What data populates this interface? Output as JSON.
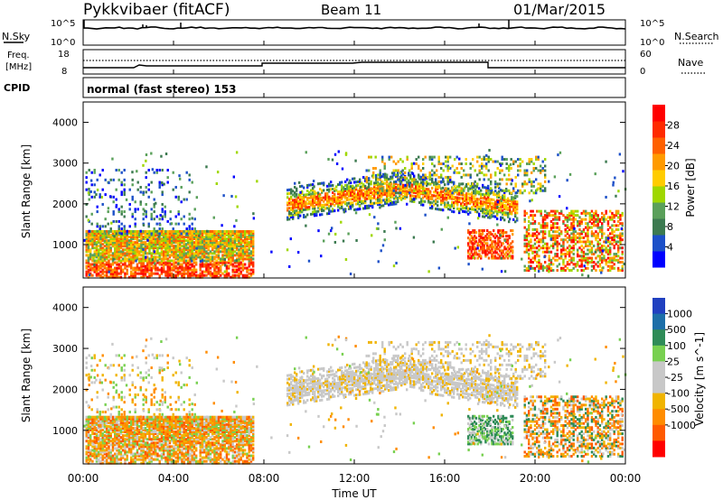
{
  "header": {
    "station": "Pykkvibaer (fitACF)",
    "beam": "Beam 11",
    "date": "01/Mar/2015"
  },
  "noise_panel": {
    "left_label": "N.Sky",
    "right_label": "N.Search",
    "left_ticks": [
      "10^5",
      "10^0"
    ],
    "right_ticks": [
      "10^5",
      "10^0"
    ]
  },
  "freq_panel": {
    "left_label_line1": "Freq.",
    "left_label_line2": "[MHz]",
    "right_label": "Nave",
    "left_ticks": [
      "18",
      "8"
    ],
    "right_ticks": [
      "60",
      "0"
    ]
  },
  "cpid_panel": {
    "label": "CPID",
    "text": "normal (fast stereo) 153"
  },
  "x_axis": {
    "ticks": [
      "00:00",
      "04:00",
      "08:00",
      "12:00",
      "16:00",
      "20:00",
      "00:00"
    ],
    "label": "Time UT"
  },
  "colors": {
    "power_scale": [
      "#0000ff",
      "#1c50c8",
      "#3c7a50",
      "#5aa05a",
      "#9fd700",
      "#ffcc00",
      "#ff9a00",
      "#ff6000",
      "#ff2a00",
      "#ff0000"
    ],
    "velocity_scale": [
      "#ff0000",
      "#ff5a00",
      "#ff8c00",
      "#f0b400",
      "#c8c8c8",
      "#c8c8c8",
      "#78d050",
      "#2e8b57",
      "#1c6ea8",
      "#2040c0"
    ]
  },
  "chart_data": [
    {
      "type": "heatmap",
      "title": "Power",
      "xlabel": "",
      "ylabel": "Slant Range [km]",
      "ylim": [
        180,
        4500
      ],
      "y_ticks": [
        "1000",
        "2000",
        "3000",
        "4000"
      ],
      "colorbar_label": "Power [dB]",
      "colorbar_ticks": [
        "4",
        "8",
        "12",
        "16",
        "20",
        "24",
        "28"
      ],
      "colorbar_range": [
        0,
        32
      ]
    },
    {
      "type": "heatmap",
      "title": "Velocity",
      "xlabel": "Time UT",
      "ylabel": "Slant Range [km]",
      "ylim": [
        180,
        4500
      ],
      "y_ticks": [
        "1000",
        "2000",
        "3000",
        "4000"
      ],
      "colorbar_label": "Velocity [m s^-1]",
      "colorbar_ticks": [
        "1000",
        "500",
        "100",
        "25",
        "-25",
        "-100",
        "-500",
        "-1000"
      ]
    }
  ]
}
